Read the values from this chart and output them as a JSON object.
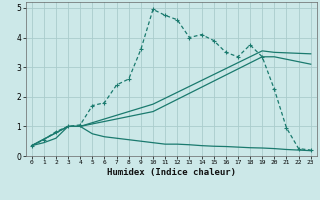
{
  "xlabel": "Humidex (Indice chaleur)",
  "background_color": "#cce8e8",
  "grid_color": "#aacccc",
  "line_color": "#1a7a6e",
  "xlim": [
    -0.5,
    23.5
  ],
  "ylim": [
    0,
    5.2
  ],
  "xtick_labels": [
    "0",
    "1",
    "2",
    "3",
    "4",
    "5",
    "6",
    "7",
    "8",
    "9",
    "10",
    "11",
    "12",
    "13",
    "14",
    "15",
    "16",
    "17",
    "18",
    "19",
    "20",
    "21",
    "22",
    "23"
  ],
  "xtick_vals": [
    0,
    1,
    2,
    3,
    4,
    5,
    6,
    7,
    8,
    9,
    10,
    11,
    12,
    13,
    14,
    15,
    16,
    17,
    18,
    19,
    20,
    21,
    22,
    23
  ],
  "ytick_vals": [
    0,
    1,
    2,
    3,
    4,
    5
  ],
  "curve1_x": [
    0,
    1,
    2,
    3,
    4,
    5,
    6,
    7,
    8,
    9,
    10,
    11,
    12,
    13,
    14,
    15,
    16,
    17,
    18,
    19,
    20,
    21,
    22,
    23
  ],
  "curve1_y": [
    0.35,
    0.55,
    0.82,
    1.0,
    1.05,
    1.7,
    1.8,
    2.4,
    2.6,
    3.6,
    4.95,
    4.75,
    4.6,
    4.0,
    4.1,
    3.9,
    3.5,
    3.35,
    3.75,
    3.35,
    2.25,
    0.95,
    0.25,
    0.2
  ],
  "curve2_x": [
    0,
    1,
    2,
    3,
    4,
    5,
    6,
    7,
    8,
    9,
    10,
    11,
    12,
    13,
    14,
    15,
    16,
    17,
    18,
    19,
    20,
    21,
    22,
    23
  ],
  "curve2_y": [
    0.35,
    0.45,
    0.6,
    1.0,
    1.0,
    0.75,
    0.65,
    0.6,
    0.55,
    0.5,
    0.45,
    0.4,
    0.4,
    0.38,
    0.35,
    0.33,
    0.32,
    0.3,
    0.28,
    0.27,
    0.25,
    0.22,
    0.2,
    0.18
  ],
  "curve3_x": [
    0,
    3,
    4,
    10,
    19,
    20,
    23
  ],
  "curve3_y": [
    0.35,
    1.0,
    1.0,
    1.5,
    3.35,
    3.35,
    3.1
  ],
  "curve4_x": [
    0,
    3,
    4,
    10,
    19,
    20,
    23
  ],
  "curve4_y": [
    0.35,
    1.0,
    1.0,
    1.75,
    3.55,
    3.5,
    3.45
  ]
}
